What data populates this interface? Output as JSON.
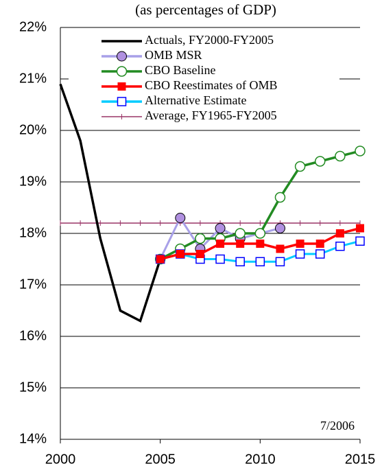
{
  "chart_data": {
    "type": "line",
    "title": "(as percentages of GDP)",
    "annotation": "7/2006",
    "x": [
      2000,
      2001,
      2002,
      2003,
      2004,
      2005,
      2006,
      2007,
      2008,
      2009,
      2010,
      2011,
      2012,
      2013,
      2014,
      2015
    ],
    "xlim": [
      2000,
      2015
    ],
    "xticks": [
      2000,
      2005,
      2010,
      2015
    ],
    "ylim": [
      14,
      22
    ],
    "yticks": [
      {
        "value": 14,
        "label": "14%"
      },
      {
        "value": 15,
        "label": "15%"
      },
      {
        "value": 16,
        "label": "16%"
      },
      {
        "value": 17,
        "label": "17%"
      },
      {
        "value": 18,
        "label": "18%"
      },
      {
        "value": 19,
        "label": "19%"
      },
      {
        "value": 20,
        "label": "20%"
      },
      {
        "value": 21,
        "label": "21%"
      },
      {
        "value": 22,
        "label": "22%"
      }
    ],
    "grid": true,
    "legend": "top",
    "series": [
      {
        "name": "Actuals, FY2000-FY2005",
        "color": "#000000",
        "marker": "none",
        "values": [
          20.9,
          19.8,
          17.9,
          16.5,
          16.3,
          17.5,
          null,
          null,
          null,
          null,
          null,
          null,
          null,
          null,
          null,
          null
        ]
      },
      {
        "name": "OMB MSR",
        "color": "#a8a0e8",
        "marker": "circle-filled",
        "marker_color": "#b090e0",
        "values": [
          null,
          null,
          null,
          null,
          null,
          17.5,
          18.3,
          17.7,
          18.1,
          17.9,
          18.0,
          18.1,
          null,
          null,
          null,
          null
        ]
      },
      {
        "name": "CBO Baseline",
        "color": "#228B22",
        "marker": "circle-open",
        "values": [
          null,
          null,
          null,
          null,
          null,
          17.5,
          17.7,
          17.9,
          17.9,
          18.0,
          18.0,
          18.7,
          19.3,
          19.4,
          19.5,
          19.6
        ]
      },
      {
        "name": "CBO Reestimates of OMB",
        "color": "#ff0000",
        "marker": "square-filled",
        "values": [
          null,
          null,
          null,
          null,
          null,
          17.5,
          17.6,
          17.6,
          17.8,
          17.8,
          17.8,
          17.7,
          17.8,
          17.8,
          18.0,
          18.1
        ]
      },
      {
        "name": "Alternative Estimate",
        "color": "#00ccff",
        "marker": "square-open",
        "marker_color": "#0000ff",
        "values": [
          null,
          null,
          null,
          null,
          null,
          17.5,
          17.6,
          17.5,
          17.5,
          17.45,
          17.45,
          17.45,
          17.6,
          17.6,
          17.75,
          17.85
        ]
      },
      {
        "name": "Average, FY1965-FY2005",
        "color": "#993366",
        "marker": "plus",
        "values": [
          18.2,
          18.2,
          18.2,
          18.2,
          18.2,
          18.2,
          18.2,
          18.2,
          18.2,
          18.2,
          18.2,
          18.2,
          18.2,
          18.2,
          18.2,
          18.2
        ]
      }
    ]
  }
}
